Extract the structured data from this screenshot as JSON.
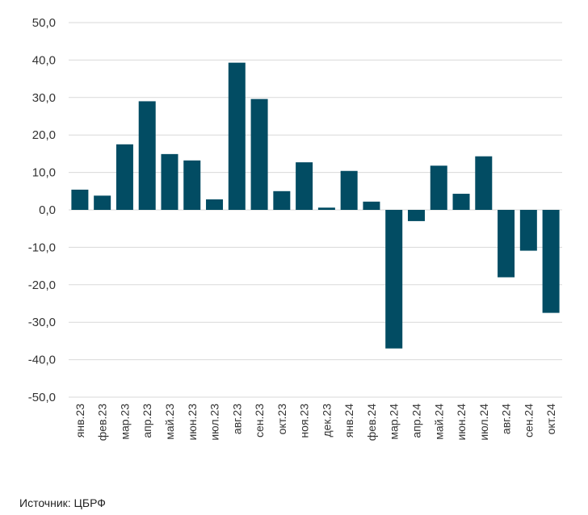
{
  "chart_data": {
    "type": "bar",
    "title": "",
    "xlabel": "",
    "ylabel": "",
    "ylim": [
      -50,
      50
    ],
    "yticks": [
      "50,0",
      "40,0",
      "30,0",
      "20,0",
      "10,0",
      "0,0",
      "-10,0",
      "-20,0",
      "-30,0",
      "-40,0",
      "-50,0"
    ],
    "grid": true,
    "bar_color": "#024c63",
    "grid_color": "#d9d9d9",
    "categories": [
      "янв.23",
      "фев.23",
      "мар.23",
      "апр.23",
      "май.23",
      "июн.23",
      "июл.23",
      "авг.23",
      "сен.23",
      "окт.23",
      "ноя.23",
      "дек.23",
      "янв.24",
      "фев.24",
      "мар.24",
      "апр.24",
      "май.24",
      "июн.24",
      "июл.24",
      "авг.24",
      "сен.24",
      "окт.24"
    ],
    "values": [
      5.4,
      3.8,
      17.5,
      29.0,
      14.9,
      13.2,
      2.8,
      39.3,
      29.6,
      5.0,
      12.7,
      0.6,
      10.4,
      2.2,
      -37.0,
      -3.0,
      11.8,
      4.3,
      14.3,
      -18.0,
      -10.9,
      -27.5
    ]
  },
  "source": "Источник: ЦБРФ"
}
